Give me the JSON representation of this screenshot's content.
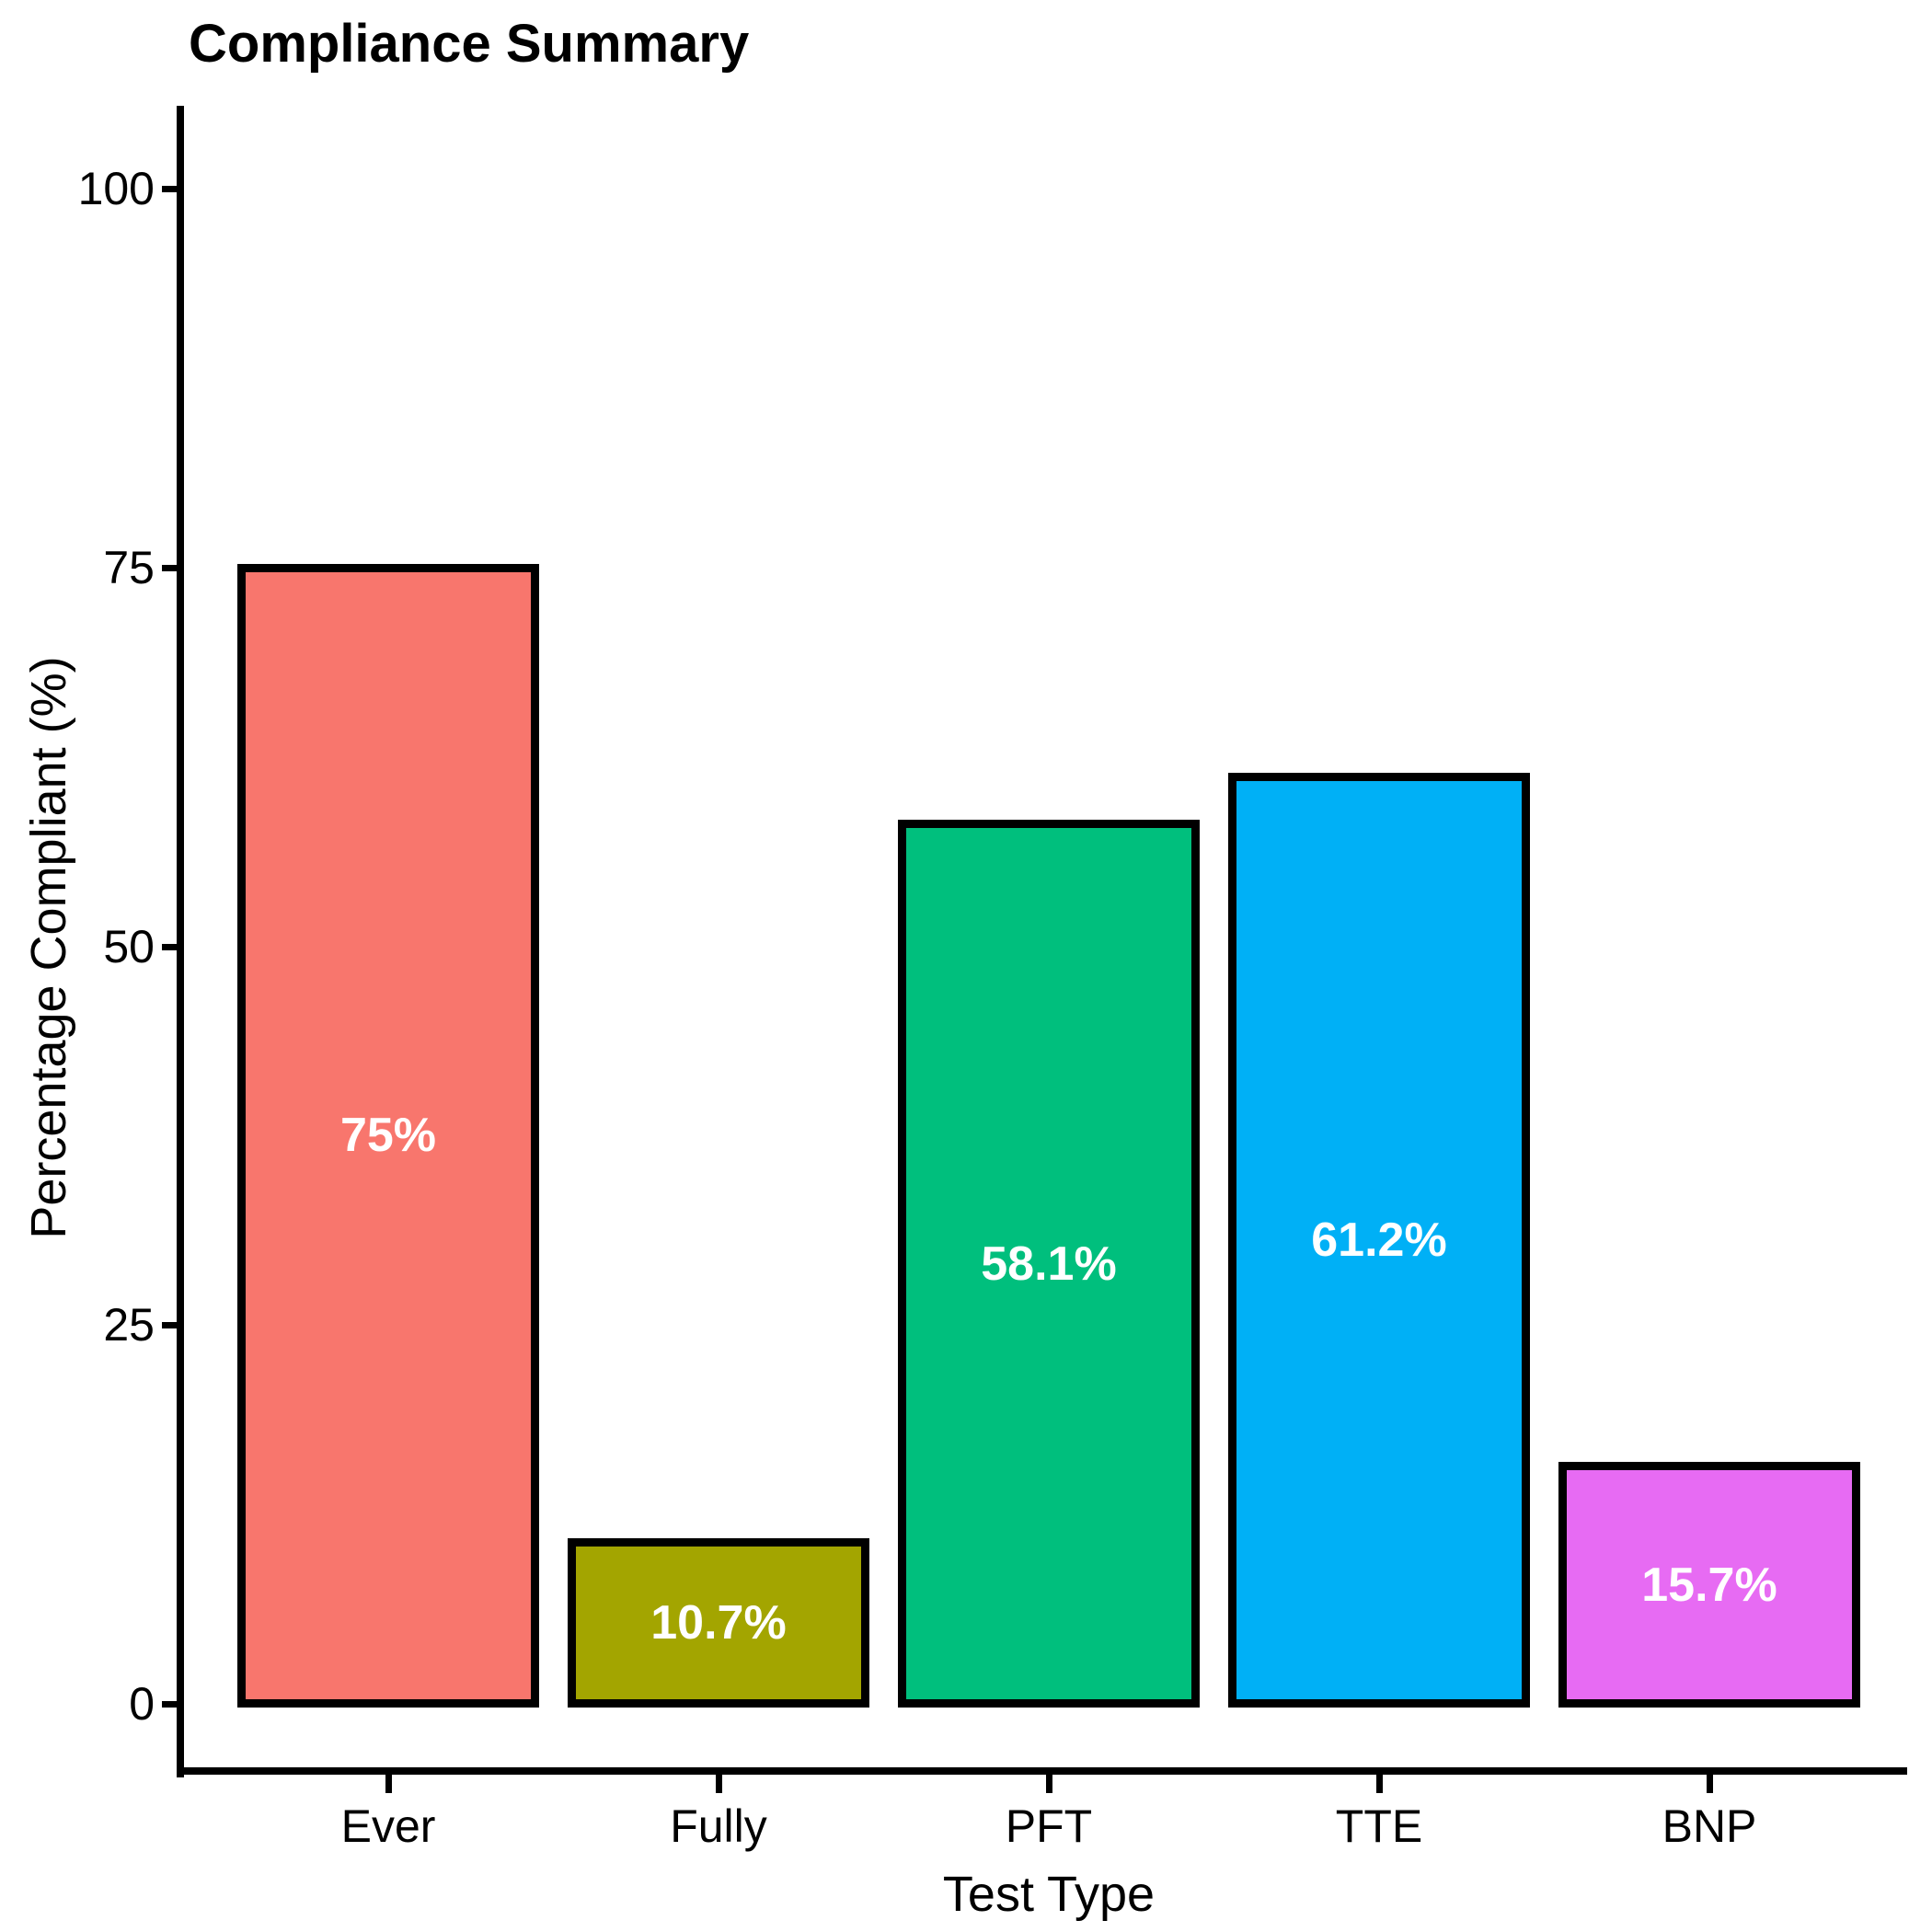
{
  "chart_data": {
    "type": "bar",
    "title": "Compliance Summary",
    "xlabel": "Test Type",
    "ylabel": "Percentage Compliant (%)",
    "categories": [
      "Ever",
      "Fully",
      "PFT",
      "TTE",
      "BNP"
    ],
    "values": [
      75,
      10.7,
      58.1,
      61.2,
      15.7
    ],
    "bar_labels": [
      "75%",
      "10.7%",
      "58.1%",
      "61.2%",
      "15.7%"
    ],
    "bar_colors": [
      "#F8766D",
      "#A3A500",
      "#00BF7D",
      "#00B0F6",
      "#E76BF3"
    ],
    "bar_border_color": "#000000",
    "bar_label_color": "#FFFFFF",
    "axis_color": "#000000",
    "background_color": "#FFFFFF",
    "yticks": [
      0,
      25,
      50,
      75,
      100
    ],
    "ylim": [
      0,
      105
    ],
    "grid": false,
    "legend": false
  }
}
